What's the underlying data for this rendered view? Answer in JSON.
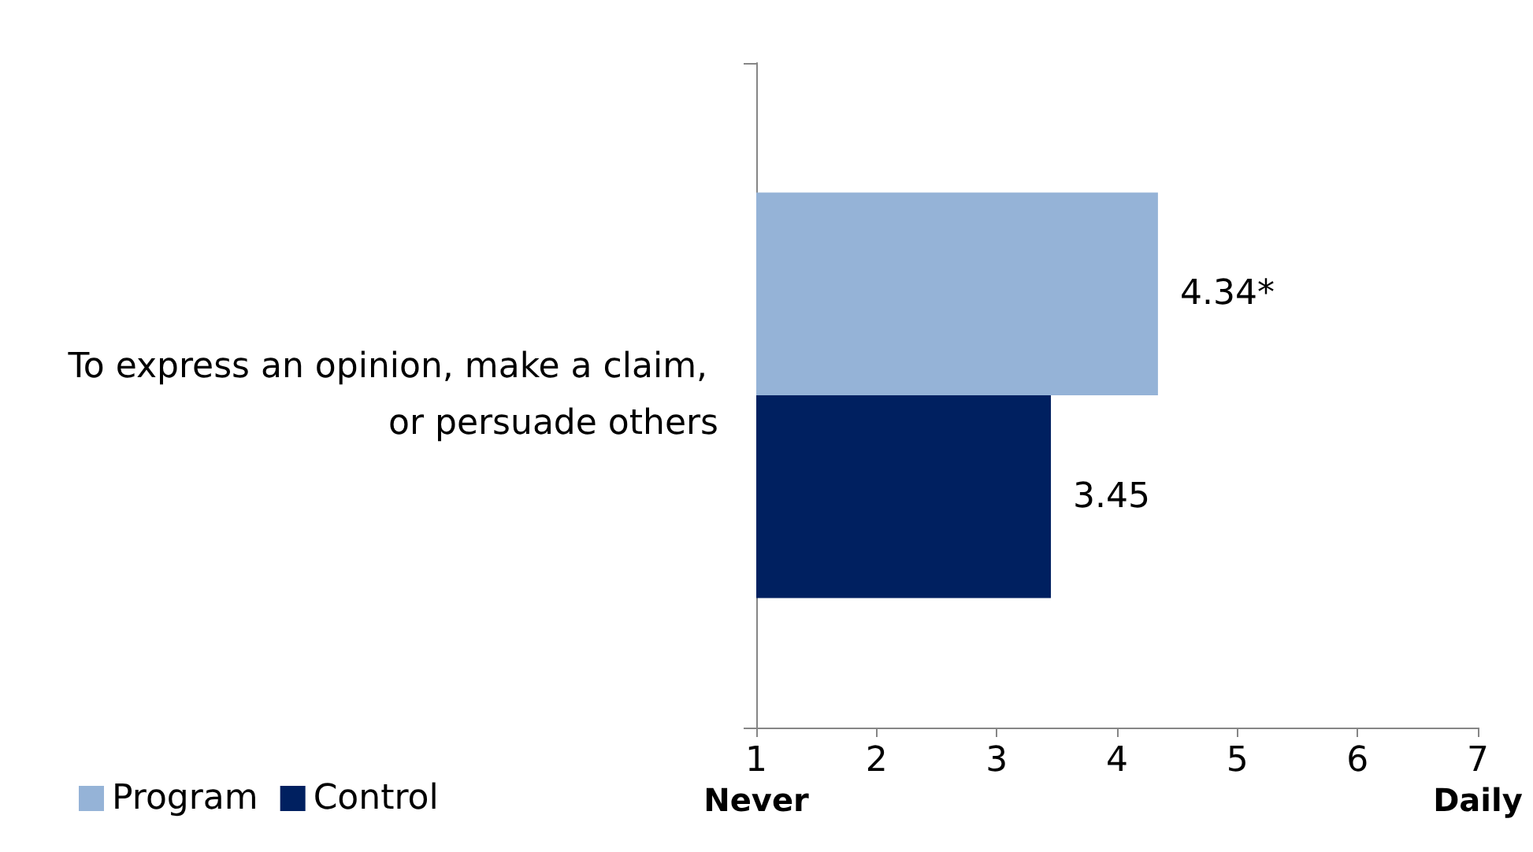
{
  "chart_data": {
    "type": "bar",
    "orientation": "horizontal",
    "categories": [
      "To express an opinion, make a claim, or persuade others"
    ],
    "series": [
      {
        "name": "Program",
        "color": "#95b3d7",
        "values": [
          4.34
        ],
        "value_labels": [
          "4.34*"
        ]
      },
      {
        "name": "Control",
        "color": "#002060",
        "values": [
          3.45
        ],
        "value_labels": [
          "3.45"
        ]
      }
    ],
    "xlim": [
      1,
      7
    ],
    "xticks": [
      {
        "value": 1,
        "label": "1\nNever"
      },
      2,
      3,
      4,
      5,
      6,
      {
        "value": 7,
        "label": "7\nDaily"
      }
    ],
    "grid": false,
    "legend": "bottom left"
  }
}
